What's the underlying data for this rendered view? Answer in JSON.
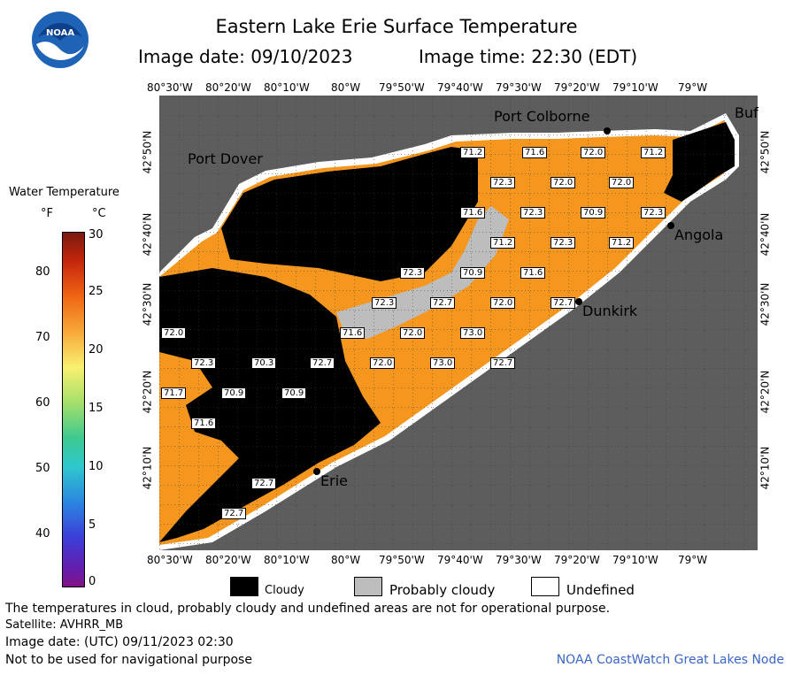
{
  "title": "Eastern Lake Erie Surface Temperature",
  "image_date_label": "Image date: 09/10/2023",
  "image_time_label": "Image time: 22:30 (EDT)",
  "logo_text": "NOAA",
  "lon_ticks": [
    "80°30'W",
    "80°20'W",
    "80°10'W",
    "80°W",
    "79°50'W",
    "79°40'W",
    "79°30'W",
    "79°20'W",
    "79°10'W",
    "79°W"
  ],
  "lat_ticks": [
    "42°50'N",
    "42°40'N",
    "42°30'N",
    "42°20'N",
    "42°10'N"
  ],
  "colorbar": {
    "title": "Water Temperature",
    "unit_f": "°F",
    "unit_c": "°C",
    "f_ticks": [
      "80",
      "70",
      "60",
      "50",
      "40"
    ],
    "c_ticks": [
      "30",
      "25",
      "20",
      "15",
      "10",
      "5",
      "0"
    ]
  },
  "places": {
    "port_colborne": "Port Colborne",
    "port_dover": "Port Dover",
    "angola": "Angola",
    "dunkirk": "Dunkirk",
    "erie": "Erie",
    "buffalo": "Buf"
  },
  "temps": [
    "71.2",
    "71.6",
    "72.0",
    "71.2",
    "72.3",
    "72.0",
    "72.0",
    "71.6",
    "72.3",
    "70.9",
    "72.3",
    "71.2",
    "72.3",
    "71.2",
    "72.3",
    "70.9",
    "71.6",
    "72.3",
    "72.7",
    "72.0",
    "72.7",
    "72.0",
    "71.6",
    "72.0",
    "73.0",
    "72.3",
    "70.3",
    "72.7",
    "72.0",
    "73.0",
    "72.7",
    "71.7",
    "70.9",
    "70.9",
    "71.6",
    "72.7",
    "72.7"
  ],
  "legend": {
    "cloudy": "Cloudy",
    "probably_cloudy": "Probably cloudy",
    "undefined": "Undefined"
  },
  "notes": {
    "line1": "The temperatures in cloud, probably cloudy and undefined areas are not for operational purpose.",
    "line2": "Satellite: AVHRR_MB",
    "line3": "Image date: (UTC) 09/11/2023  02:30",
    "line4": "Not to be used for navigational purpose"
  },
  "credit": "NOAA CoastWatch Great Lakes Node",
  "colors": {
    "land": "#5d5d5d",
    "water_warm": "#f5961e",
    "cloudy": "#000000",
    "probably_cloudy": "#bdbdbd",
    "undefined": "#ffffff"
  }
}
